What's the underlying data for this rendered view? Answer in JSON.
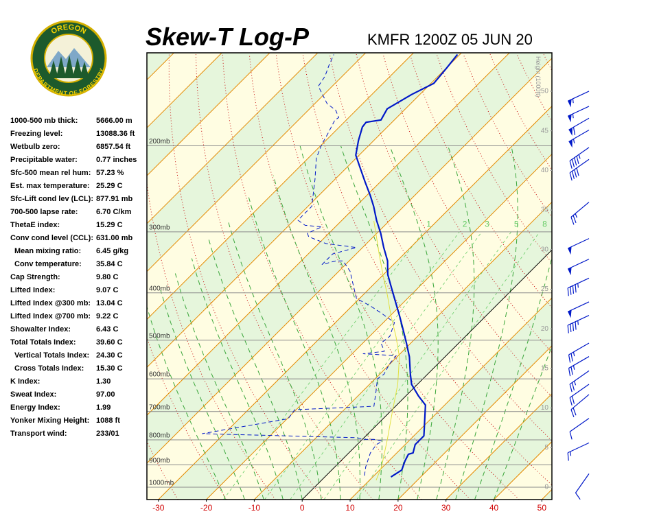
{
  "header": {
    "title": "Skew-T Log-P",
    "station": "KMFR 1200Z 05 JUN 20"
  },
  "logo": {
    "top": "OREGON",
    "bottom": "DEPARTMENT OF FORESTRY"
  },
  "indices": [
    {
      "label": "1000-500 mb thick:",
      "value": "5666.00 m"
    },
    {
      "label": "Freezing level:",
      "value": "13088.36 ft"
    },
    {
      "label": "Wetbulb zero:",
      "value": "6857.54 ft"
    },
    {
      "label": "Precipitable water:",
      "value": "0.77 inches"
    },
    {
      "label": "Sfc-500 mean rel hum:",
      "value": "57.23 %"
    },
    {
      "label": "Est. max temperature:",
      "value": "25.29 C"
    },
    {
      "label": "Sfc-Lift cond lev (LCL):",
      "value": "877.91 mb"
    },
    {
      "label": "700-500 lapse rate:",
      "value": "6.70 C/km"
    },
    {
      "label": "ThetaE index:",
      "value": "15.29 C"
    },
    {
      "label": "Conv cond level (CCL):",
      "value": "631.00 mb"
    },
    {
      "label": "Mean mixing ratio:",
      "value": "6.45 g/kg",
      "indent": true
    },
    {
      "label": "Conv temperature:",
      "value": "35.84 C",
      "indent": true
    },
    {
      "label": "Cap Strength:",
      "value": "9.80 C"
    },
    {
      "label": "Lifted Index:",
      "value": "9.07 C"
    },
    {
      "label": "Lifted Index @300 mb:",
      "value": "13.04 C"
    },
    {
      "label": "Lifted Index @700 mb:",
      "value": "9.22 C"
    },
    {
      "label": "Showalter Index:",
      "value": "6.43 C"
    },
    {
      "label": "Total Totals Index:",
      "value": "39.60 C"
    },
    {
      "label": "Vertical Totals Index:",
      "value": "24.30 C",
      "indent": true
    },
    {
      "label": "Cross Totals Index:",
      "value": "15.30 C",
      "indent": true
    },
    {
      "label": "K Index:",
      "value": "1.30"
    },
    {
      "label": "Sweat Index:",
      "value": "97.00"
    },
    {
      "label": "Energy Index:",
      "value": "1.99"
    },
    {
      "label": "Yonker Mixing Height:",
      "value": "1088 ft"
    },
    {
      "label": "Transport wind:",
      "value": "233/01"
    }
  ],
  "chart_data": {
    "type": "skew-t",
    "xlim": [
      -32.4,
      52.1
    ],
    "xticks": [
      -30,
      -20,
      -10,
      0,
      10,
      20,
      30,
      40,
      50
    ],
    "ylim": [
      1060,
      129
    ],
    "log_y": true,
    "yticks": [
      {
        "value": 200,
        "label": "200mb"
      },
      {
        "value": 300,
        "label": "300mb"
      },
      {
        "value": 400,
        "label": "400mb"
      },
      {
        "value": 500,
        "label": "500mb"
      },
      {
        "value": 600,
        "label": "600mb"
      },
      {
        "value": 700,
        "label": "700mb"
      },
      {
        "value": 800,
        "label": "800mb"
      },
      {
        "value": 900,
        "label": "900mb"
      },
      {
        "value": 1000,
        "label": "1000mb"
      }
    ],
    "y2label": "Height (1000ft)",
    "y2lim": [
      -1.56,
      54.85
    ],
    "y2ticks": [
      0,
      5,
      10,
      15,
      20,
      25,
      30,
      35,
      40,
      45,
      50
    ],
    "mixing_ratio_labels": [
      1,
      2,
      3,
      5,
      8
    ],
    "series": [
      {
        "color": "#0018c8",
        "line_style": "solid",
        "line_width": 2.2,
        "pressure": [
          953,
          922,
          884,
          856,
          851,
          818,
          792,
          785,
          679,
          651,
          616,
          587,
          541,
          507,
          475,
          446,
          418,
          389,
          367,
          344,
          323,
          302,
          284,
          266,
          253,
          237,
          222,
          209,
          195,
          183,
          179,
          177,
          168,
          157,
          149,
          139,
          130
        ],
        "values": [
          13.8,
          14.6,
          13.4,
          12.7,
          13.4,
          12.1,
          12.1,
          12.1,
          6.0,
          2.7,
          -1.2,
          -3.6,
          -7.4,
          -10.9,
          -14.5,
          -18.0,
          -21.7,
          -25.8,
          -29.1,
          -32.0,
          -35.6,
          -39.2,
          -42.8,
          -46.3,
          -49.2,
          -53.2,
          -57.1,
          -60.7,
          -63.2,
          -65.2,
          -65.4,
          -62.8,
          -63.8,
          -61.7,
          -59.4,
          -59.9,
          -60.5
        ]
      },
      {
        "color": "#0018c8",
        "line_style": "dashed",
        "line_width": 1,
        "pressure": [
          947,
          908,
          851,
          818,
          805,
          798,
          798,
          792,
          777,
          724,
          694,
          683,
          636,
          600,
          587,
          559,
          538,
          533,
          527,
          507,
          491,
          460,
          439,
          425,
          411,
          385,
          361,
          344,
          344,
          350,
          339,
          333,
          323,
          317,
          307,
          302,
          293,
          291,
          284,
          266,
          234,
          212,
          199,
          189,
          177,
          175,
          169,
          164,
          151,
          144,
          137,
          130
        ],
        "values": [
          8.0,
          6.4,
          4.5,
          4.0,
          4.5,
          2.4,
          0.2,
          -1.5,
          -34.6,
          -19.8,
          -20.3,
          -4.5,
          -7.2,
          -9.5,
          -9.1,
          -10.1,
          -10.4,
          -17.7,
          -13.8,
          -16.2,
          -15.8,
          -17.7,
          -22.7,
          -26.3,
          -30.6,
          -34.2,
          -37.7,
          -41.3,
          -42.8,
          -44.9,
          -44.9,
          -44.9,
          -41.3,
          -48.5,
          -53.5,
          -54.5,
          -52.8,
          -56.6,
          -59.2,
          -59.2,
          -64.2,
          -68.3,
          -70.0,
          -71.0,
          -72.4,
          -72.1,
          -74.3,
          -77.4,
          -82.9,
          -83.6,
          -85.0,
          -86.3
        ]
      },
      {
        "color": "#e2e040",
        "line_style": "solid",
        "line_width": 1,
        "pressure": [
          968,
          908,
          798,
          701,
          616,
          541,
          491,
          446,
          405,
          367,
          333,
          302,
          285
        ],
        "values": [
          11.4,
          9.7,
          5.2,
          0.5,
          -4.1,
          -9.5,
          -14.5,
          -19.8,
          -24.8,
          -30.1,
          -35.2,
          -40.2,
          -43.2
        ]
      }
    ],
    "winds": {
      "height": [
        50.0,
        48.1,
        46.6,
        45.1,
        42.9,
        41.4,
        36.0,
        31.4,
        28.8,
        26.4,
        23.4,
        21.7,
        18.2,
        16.5,
        14.7,
        13.0,
        11.7,
        8.7,
        5.6,
        1.7
      ],
      "speed": [
        55,
        55,
        60,
        55,
        45,
        40,
        25,
        50,
        50,
        45,
        50,
        45,
        25,
        25,
        25,
        20,
        20,
        10,
        15,
        10
      ],
      "direction": [
        245,
        245,
        240,
        240,
        235,
        235,
        230,
        245,
        245,
        245,
        245,
        245,
        240,
        240,
        235,
        235,
        230,
        235,
        245,
        215
      ],
      "color": "#0018c8"
    }
  }
}
